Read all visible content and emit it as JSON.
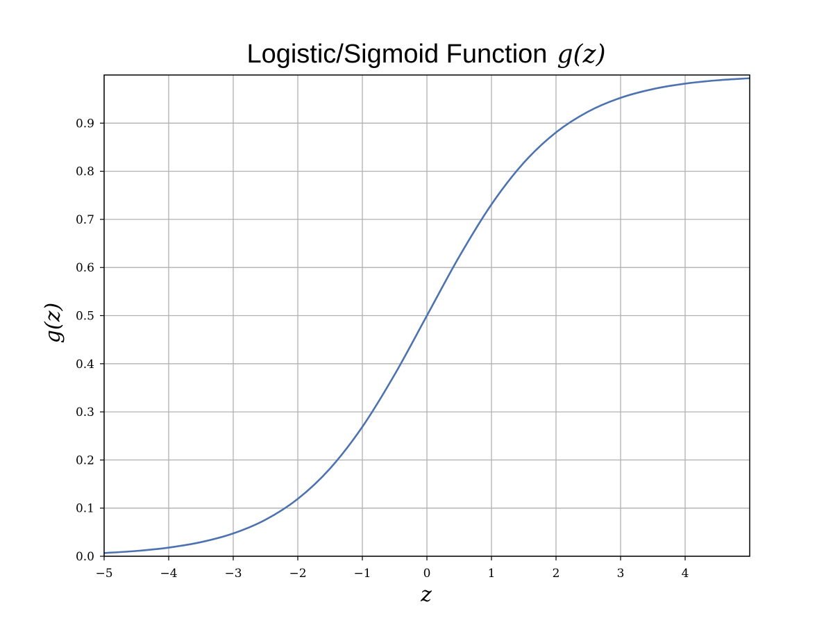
{
  "chart_data": {
    "type": "line",
    "title": "Logistic/Sigmoid Function",
    "title_math": "g(z)",
    "xlabel": "z",
    "ylabel": "g(z)",
    "xlim": [
      -5,
      5
    ],
    "ylim": [
      0,
      1
    ],
    "grid": true,
    "xticks": [
      -5,
      -4,
      -3,
      -2,
      -1,
      0,
      1,
      2,
      3,
      4
    ],
    "xtick_labels": [
      "−5",
      "−4",
      "−3",
      "−2",
      "−1",
      "0",
      "1",
      "2",
      "3",
      "4"
    ],
    "yticks": [
      0,
      0.1,
      0.2,
      0.3,
      0.4,
      0.5,
      0.6,
      0.7,
      0.8,
      0.9
    ],
    "ytick_labels": [
      "0.0",
      "0.1",
      "0.2",
      "0.3",
      "0.4",
      "0.5",
      "0.6",
      "0.7",
      "0.8",
      "0.9"
    ],
    "series": [
      {
        "color": "#4c72b0",
        "x": [
          -5,
          -4.5,
          -4,
          -3.5,
          -3,
          -2.5,
          -2,
          -1.5,
          -1,
          -0.5,
          0,
          0.5,
          1,
          1.5,
          2,
          2.5,
          3,
          3.5,
          4,
          4.5,
          5
        ],
        "y": [
          0.0067,
          0.011,
          0.018,
          0.0293,
          0.0474,
          0.0759,
          0.1192,
          0.1824,
          0.2689,
          0.3775,
          0.5,
          0.6225,
          0.7311,
          0.8176,
          0.8808,
          0.9241,
          0.9526,
          0.9707,
          0.982,
          0.989,
          0.9933
        ]
      }
    ]
  }
}
